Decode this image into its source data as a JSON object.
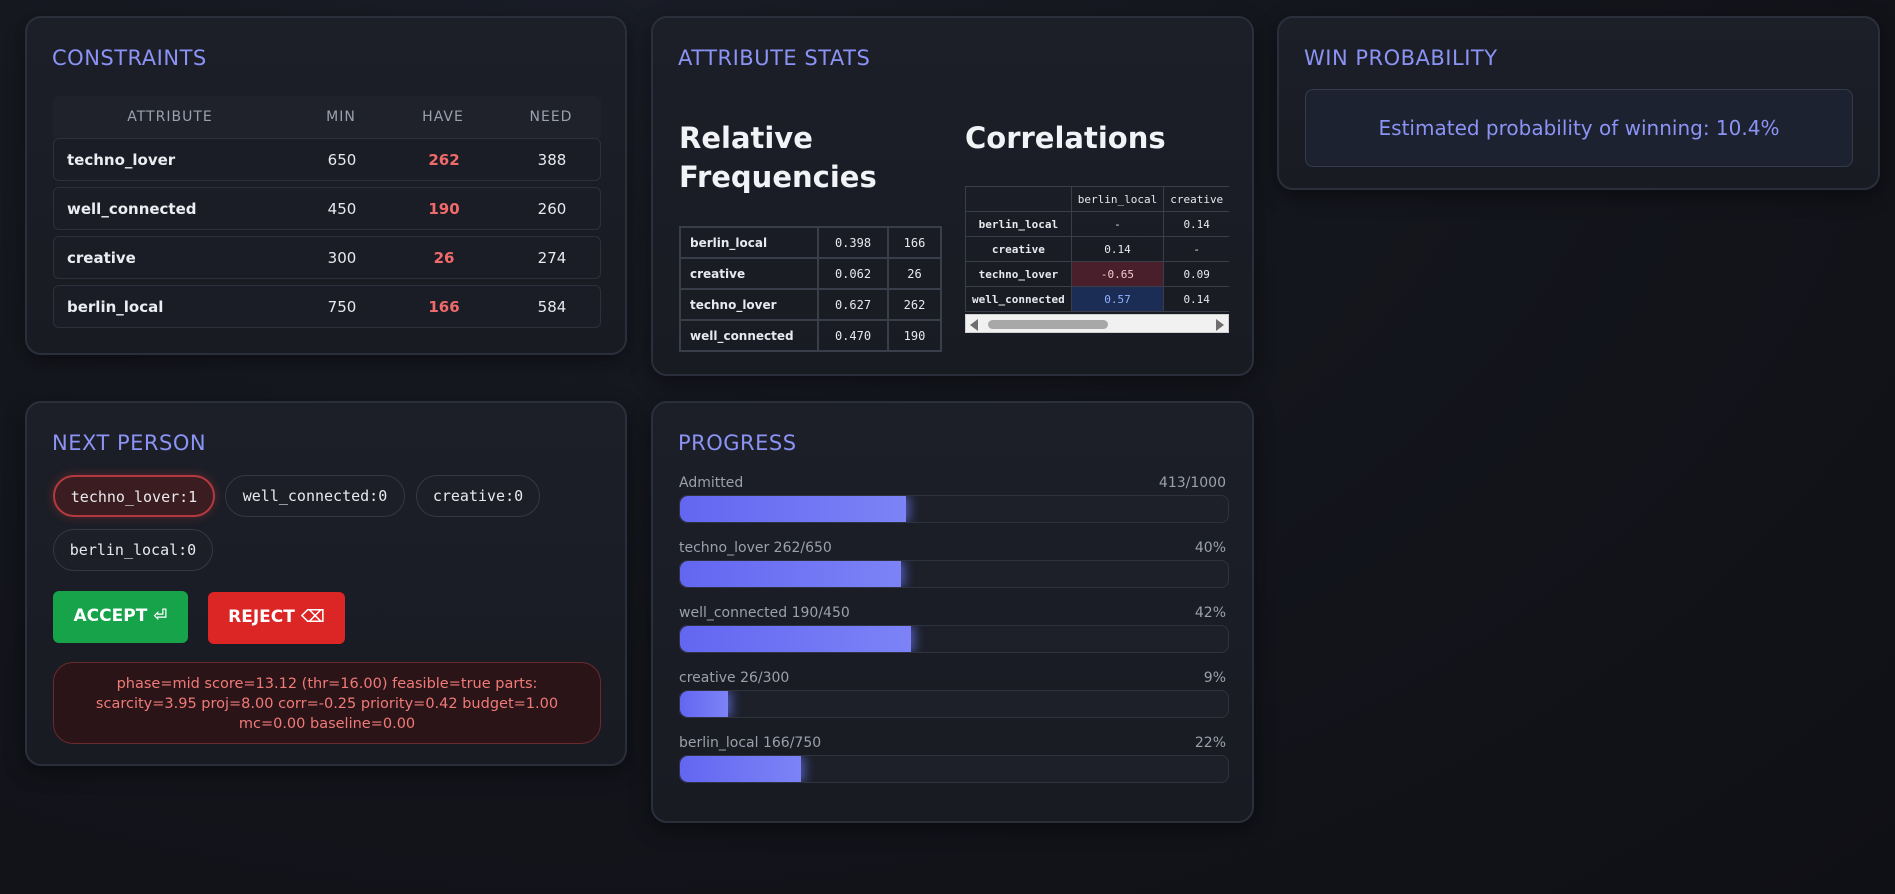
{
  "constraints": {
    "title": "CONSTRAINTS",
    "headers": {
      "attribute": "ATTRIBUTE",
      "min": "MIN",
      "have": "HAVE",
      "need": "NEED"
    },
    "rows": [
      {
        "name": "techno_lover",
        "min": "650",
        "have": "262",
        "need": "388"
      },
      {
        "name": "well_connected",
        "min": "450",
        "have": "190",
        "need": "260"
      },
      {
        "name": "creative",
        "min": "300",
        "have": "26",
        "need": "274"
      },
      {
        "name": "berlin_local",
        "min": "750",
        "have": "166",
        "need": "584"
      }
    ]
  },
  "stats": {
    "title": "ATTRIBUTE STATS",
    "freq_title_line1": "Relative",
    "freq_title_line2": "Frequencies",
    "corr_title": "Correlations",
    "freq_rows": [
      {
        "name": "berlin_local",
        "value": "0.398",
        "count": "166"
      },
      {
        "name": "creative",
        "value": "0.062",
        "count": "26"
      },
      {
        "name": "techno_lover",
        "value": "0.627",
        "count": "262"
      },
      {
        "name": "well_connected",
        "value": "0.470",
        "count": "190"
      }
    ],
    "corr_columns": [
      "berlin_local",
      "creative"
    ],
    "corr_rows": [
      {
        "name": "berlin_local",
        "c1": "-",
        "c2": "0.14"
      },
      {
        "name": "creative",
        "c1": "0.14",
        "c2": "-"
      },
      {
        "name": "techno_lover",
        "c1": "-0.65",
        "c2": "0.09"
      },
      {
        "name": "well_connected",
        "c1": "0.57",
        "c2": "0.14"
      }
    ]
  },
  "win": {
    "title": "WIN PROBABILITY",
    "text": "Estimated probability of winning: 10.4%"
  },
  "next": {
    "title": "NEXT PERSON",
    "chips": [
      "techno_lover:1",
      "well_connected:0",
      "creative:0",
      "berlin_local:0"
    ],
    "accept_label": "ACCEPT ⏎",
    "reject_label": "REJECT ⌫",
    "debug": "phase=mid score=13.12 (thr=16.00) feasible=true parts: scarcity=3.95 proj=8.00 corr=-0.25 priority=0.42 budget=1.00 mc=0.00 baseline=0.00"
  },
  "progress": {
    "title": "PROGRESS",
    "bars": [
      {
        "label": "Admitted",
        "value": "413/1000",
        "fraction": 0.413
      },
      {
        "label": "techno_lover 262/650",
        "value": "40%",
        "fraction": 0.403
      },
      {
        "label": "well_connected 190/450",
        "value": "42%",
        "fraction": 0.422
      },
      {
        "label": "creative 26/300",
        "value": "9%",
        "fraction": 0.087
      },
      {
        "label": "berlin_local 166/750",
        "value": "22%",
        "fraction": 0.221
      }
    ]
  },
  "colors": {
    "accent": "#8b93f5",
    "accept": "#16a34a",
    "reject": "#dc2626",
    "have": "#f06a6a"
  }
}
